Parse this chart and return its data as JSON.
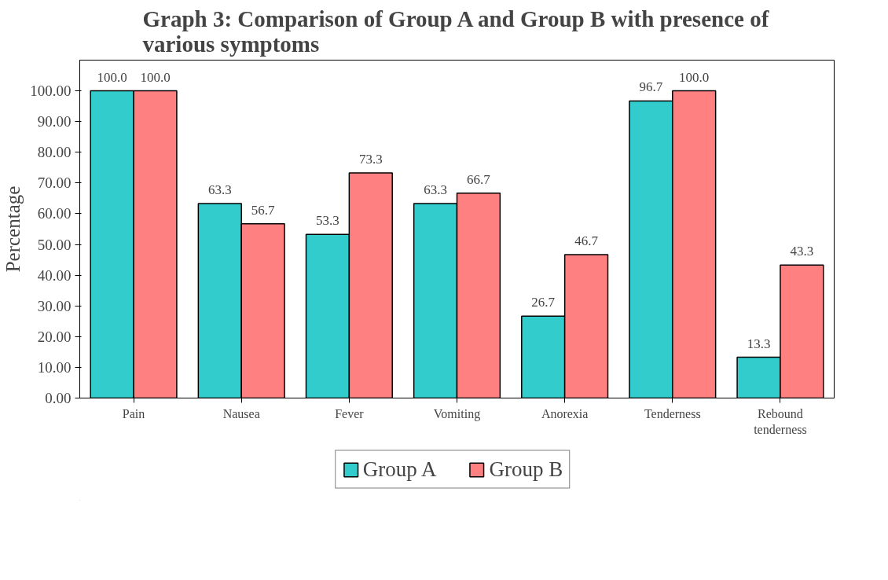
{
  "chart_data": {
    "type": "bar",
    "title": "Graph 3: Comparison of Group A and Group B with presence of various symptoms",
    "ylabel": "Percentage",
    "categories": [
      "Pain",
      "Nausea",
      "Fever",
      "Vomiting",
      "Anorexia",
      "Tenderness",
      "Rebound tenderness"
    ],
    "series": [
      {
        "name": "Group A",
        "color": "#33cccc",
        "values": [
          100.0,
          63.3,
          53.3,
          63.3,
          26.7,
          96.7,
          13.3
        ],
        "value_labels": [
          "100.0",
          "63.3",
          "53.3",
          "63.3",
          "26.7",
          "96.7",
          "13.3"
        ]
      },
      {
        "name": "Group B",
        "color": "#ff8080",
        "values": [
          100.0,
          56.7,
          73.3,
          66.7,
          46.7,
          100.0,
          43.3
        ],
        "value_labels": [
          "100.0",
          "56.7",
          "73.3",
          "66.7",
          "46.7",
          "100.0",
          "43.3"
        ]
      }
    ],
    "ylim": [
      0,
      110
    ],
    "yticks": [
      {
        "value": 0,
        "label": "0.00"
      },
      {
        "value": 10,
        "label": "10.00"
      },
      {
        "value": 20,
        "label": "20.00"
      },
      {
        "value": 30,
        "label": "30.00"
      },
      {
        "value": 40,
        "label": "40.00"
      },
      {
        "value": 50,
        "label": "50.00"
      },
      {
        "value": 60,
        "label": "60.00"
      },
      {
        "value": 70,
        "label": "70.00"
      },
      {
        "value": 80,
        "label": "80.00"
      },
      {
        "value": 90,
        "label": "90.00"
      },
      {
        "value": 100,
        "label": "100.00"
      }
    ],
    "grid": false,
    "legend": "bottom"
  }
}
